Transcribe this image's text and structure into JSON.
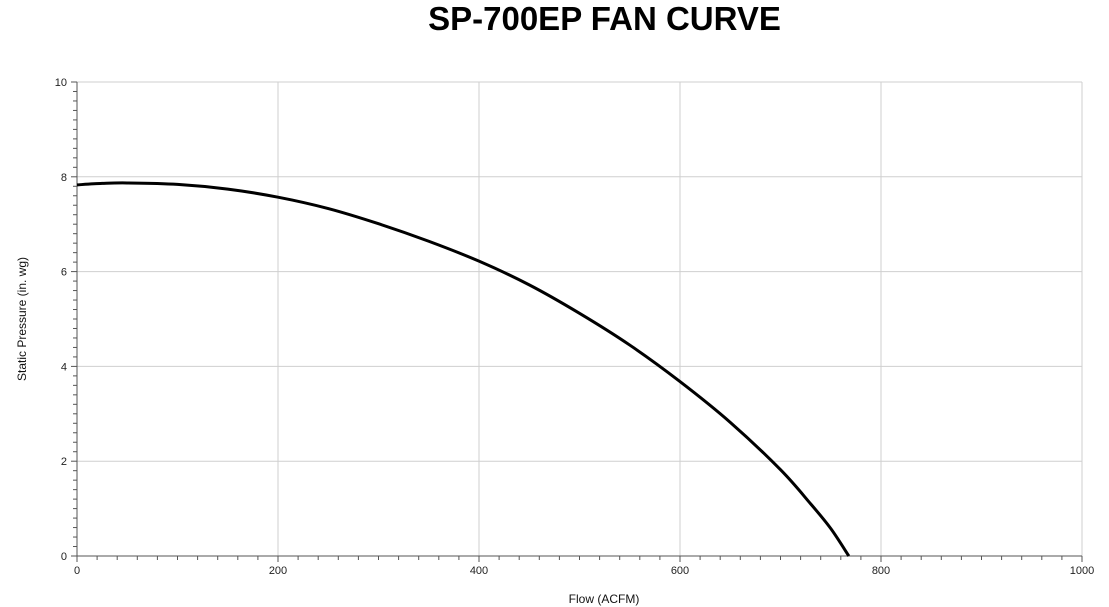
{
  "chart_data": {
    "type": "line",
    "title": "SP-700EP FAN CURVE",
    "xlabel": "Flow (ACFM)",
    "ylabel": "Static Pressure (in. wg)",
    "xlim": [
      0,
      1000
    ],
    "ylim": [
      0,
      10
    ],
    "x_ticks": [
      "0",
      "200",
      "400",
      "600",
      "800",
      "1000"
    ],
    "y_ticks": [
      "0",
      "2",
      "4",
      "6",
      "8",
      "10"
    ],
    "grid": true,
    "legend": "none",
    "series": [
      {
        "x": [
          0,
          25,
          50,
          100,
          150,
          200,
          250,
          300,
          350,
          400,
          450,
          500,
          550,
          600,
          650,
          700,
          730,
          750,
          768
        ],
        "y": [
          7.83,
          7.86,
          7.87,
          7.84,
          7.74,
          7.57,
          7.33,
          7.01,
          6.64,
          6.22,
          5.72,
          5.12,
          4.45,
          3.68,
          2.82,
          1.82,
          1.1,
          0.58,
          0
        ],
        "color": "#000000"
      }
    ]
  }
}
